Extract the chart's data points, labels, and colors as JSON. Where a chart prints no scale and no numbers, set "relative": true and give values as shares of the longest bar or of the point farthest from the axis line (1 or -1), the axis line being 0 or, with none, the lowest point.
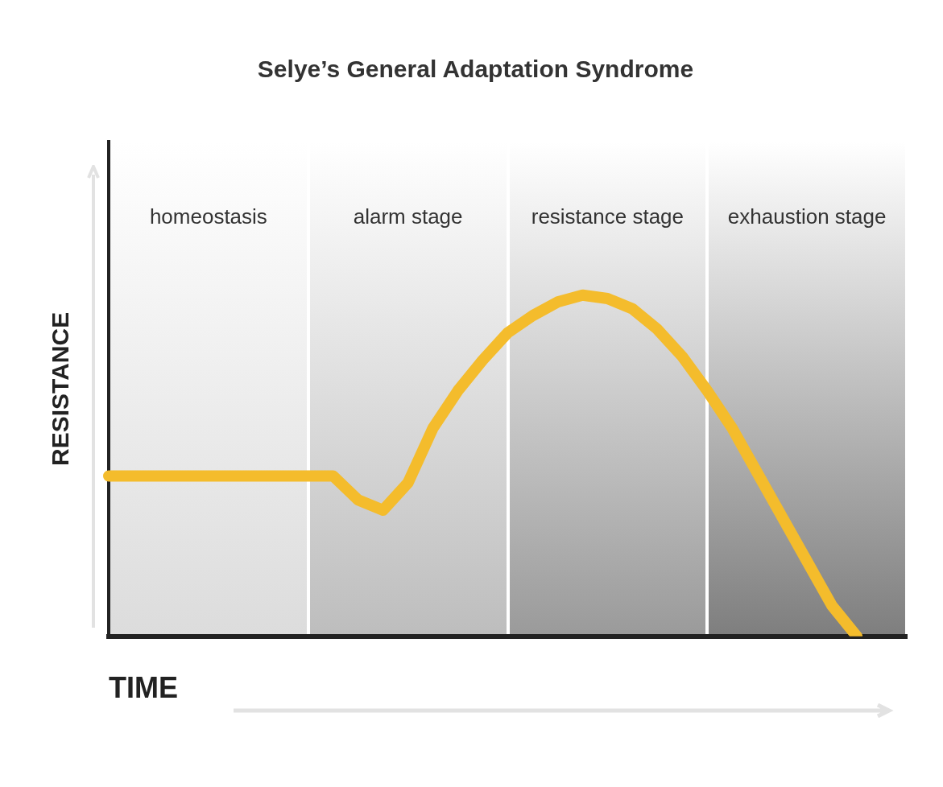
{
  "chart_data": {
    "type": "line",
    "title": "Selye’s General Adaptation Syndrome",
    "xlabel": "TIME",
    "ylabel": "RESISTANCE",
    "relative": true,
    "tick_labels": false,
    "marker": "none",
    "line_style": "solid",
    "categories": [
      null,
      null,
      null,
      null,
      null,
      null,
      null,
      null,
      null,
      null,
      null,
      null,
      null,
      null,
      null,
      null,
      null,
      null,
      null,
      null,
      null,
      null,
      null,
      null,
      null,
      null,
      null,
      null,
      null,
      null,
      null,
      null,
      null
    ],
    "series": [
      {
        "color": "#f4bc2c",
        "values": [
          0.47,
          0.47,
          0.47,
          0.47,
          0.47,
          0.47,
          0.47,
          0.47,
          0.47,
          0.47,
          0.4,
          0.37,
          0.45,
          0.61,
          0.72,
          0.81,
          0.89,
          0.94,
          0.98,
          1,
          0.99,
          0.96,
          0.9,
          0.82,
          0.72,
          0.61,
          0.48,
          0.35,
          0.22,
          0.09,
          0,
          null,
          null
        ]
      }
    ],
    "annotations": [
      "homeostasis",
      "alarm stage",
      "resistance stage",
      "exhaustion stage"
    ]
  }
}
